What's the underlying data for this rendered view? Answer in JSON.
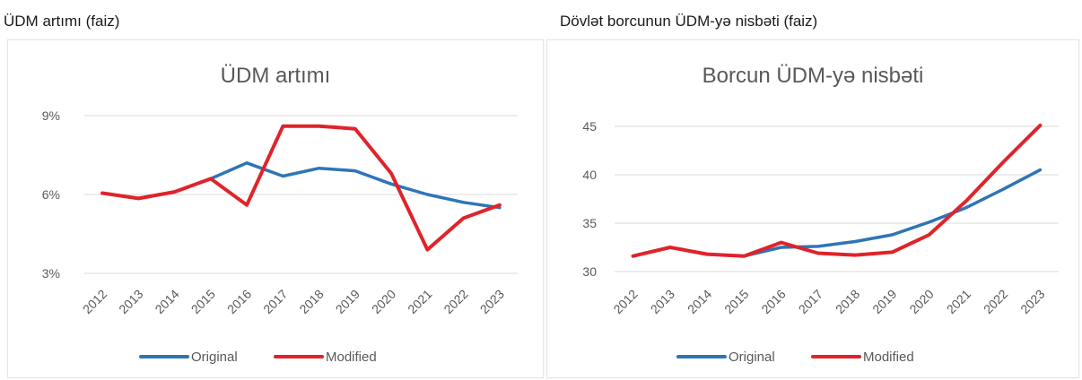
{
  "panels": [
    {
      "caption": "ÜDM artımı (faiz)"
    },
    {
      "caption": "Dövlət borcunun ÜDM-yə nisbəti (faiz)"
    }
  ],
  "chart_data": [
    {
      "type": "line",
      "title": "ÜDM artımı",
      "xlabel": "",
      "ylabel": "",
      "categories": [
        "2012",
        "2013",
        "2014",
        "2015",
        "2016",
        "2017",
        "2018",
        "2019",
        "2020",
        "2021",
        "2022",
        "2023"
      ],
      "y_ticks": [
        3,
        6,
        9
      ],
      "y_tick_labels": [
        "3%",
        "6%",
        "9%"
      ],
      "ylim": [
        3,
        9
      ],
      "grid": true,
      "legend_position": "bottom",
      "series": [
        {
          "name": "Original",
          "color": "#2E75B6",
          "values": [
            6.05,
            5.85,
            6.1,
            6.6,
            7.2,
            6.7,
            7.0,
            6.9,
            6.4,
            6.0,
            5.7,
            5.5
          ]
        },
        {
          "name": "Modified",
          "color": "#E0232A",
          "values": [
            6.05,
            5.85,
            6.1,
            6.6,
            5.6,
            8.6,
            8.6,
            8.5,
            6.8,
            3.9,
            5.1,
            5.6
          ]
        }
      ]
    },
    {
      "type": "line",
      "title": "Borcun ÜDM-yə nisbəti",
      "xlabel": "",
      "ylabel": "",
      "categories": [
        "2012",
        "2013",
        "2014",
        "2015",
        "2016",
        "2017",
        "2018",
        "2019",
        "2020",
        "2021",
        "2022",
        "2023"
      ],
      "y_ticks": [
        30,
        35,
        40,
        45
      ],
      "y_tick_labels": [
        "30",
        "35",
        "40",
        "45"
      ],
      "ylim": [
        30,
        45
      ],
      "grid": true,
      "legend_position": "bottom",
      "series": [
        {
          "name": "Original",
          "color": "#2E75B6",
          "values": [
            31.6,
            32.5,
            31.8,
            31.6,
            32.5,
            32.6,
            33.1,
            33.8,
            35.1,
            36.6,
            38.5,
            40.5
          ]
        },
        {
          "name": "Modified",
          "color": "#E0232A",
          "values": [
            31.6,
            32.5,
            31.8,
            31.6,
            33.0,
            31.9,
            31.7,
            32.0,
            33.8,
            37.3,
            41.3,
            45.1
          ]
        }
      ]
    }
  ]
}
